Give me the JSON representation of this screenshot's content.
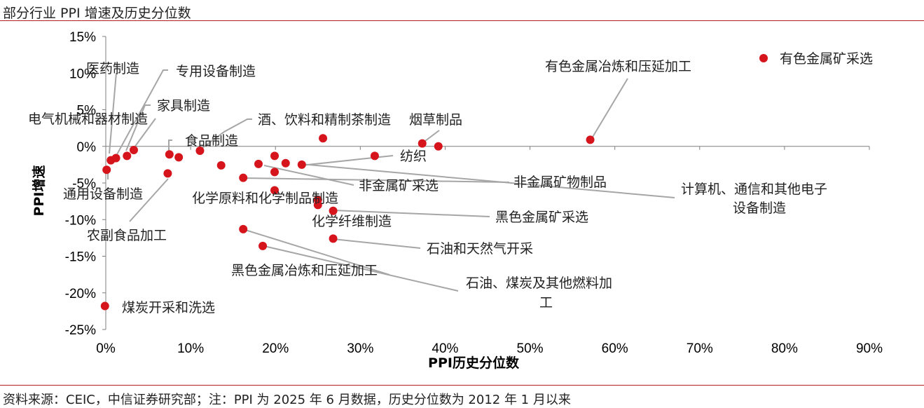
{
  "title": "部分行业 PPI 增速及历史分位数",
  "source": "资料来源：CEIC，中信证券研究部；注：PPI 为 2025 年 6 月数据，历史分位数为 2012 年 1 月以来",
  "chart_data": {
    "type": "scatter",
    "xlabel": "PPI历史分位数",
    "ylabel": "PPI增速",
    "xlim": [
      0,
      90
    ],
    "ylim": [
      -25,
      15
    ],
    "xticks": [
      "0%",
      "10%",
      "20%",
      "30%",
      "40%",
      "50%",
      "60%",
      "70%",
      "80%",
      "90%"
    ],
    "yticks": [
      "15%",
      "10%",
      "5%",
      "0%",
      "-5%",
      "-10%",
      "-15%",
      "-20%",
      "-25%"
    ],
    "series_name": "有色金属矿采选",
    "point_color": "#d6141c",
    "points": [
      {
        "x": 0.1,
        "y": -3.2
      },
      {
        "x": 0.6,
        "y": -1.9
      },
      {
        "x": 1.2,
        "y": -1.6
      },
      {
        "x": 2.5,
        "y": -1.3
      },
      {
        "x": 3.3,
        "y": -0.5
      },
      {
        "x": 7.3,
        "y": -3.7
      },
      {
        "x": 7.5,
        "y": -1.1
      },
      {
        "x": 8.6,
        "y": -1.5
      },
      {
        "x": 11.1,
        "y": -0.6
      },
      {
        "x": 13.6,
        "y": -2.6
      },
      {
        "x": 16.2,
        "y": -4.3
      },
      {
        "x": 16.2,
        "y": -11.3
      },
      {
        "x": 18.0,
        "y": -2.4
      },
      {
        "x": 18.5,
        "y": -13.6
      },
      {
        "x": 19.9,
        "y": -1.3
      },
      {
        "x": 19.9,
        "y": -3.5
      },
      {
        "x": 19.9,
        "y": -6.0
      },
      {
        "x": 21.2,
        "y": -2.3
      },
      {
        "x": 23.1,
        "y": -2.5
      },
      {
        "x": 25.0,
        "y": -7.3
      },
      {
        "x": 25.0,
        "y": -8.0
      },
      {
        "x": 25.6,
        "y": 1.1
      },
      {
        "x": 26.8,
        "y": -8.8
      },
      {
        "x": 26.8,
        "y": -12.6
      },
      {
        "x": 31.7,
        "y": -1.3
      },
      {
        "x": 37.3,
        "y": 0.4
      },
      {
        "x": 39.2,
        "y": 0.0
      },
      {
        "x": 57.1,
        "y": 0.9
      },
      {
        "x": -0.1,
        "y": -21.8
      }
    ],
    "annotations": [
      {
        "text": "医药制造",
        "x": 0.8,
        "y": -1.9
      },
      {
        "text": "专用设备制造",
        "x": 1.5,
        "y": -1.6
      },
      {
        "text": "家具制造",
        "x": 2.6,
        "y": -1.3
      },
      {
        "text": "电气机械和器材制造",
        "x": 3.3,
        "y": -0.5
      },
      {
        "text": "通用设备制造",
        "x": 0.3,
        "y": -3.2
      },
      {
        "text": "农副食品加工",
        "x": 7.3,
        "y": -3.7
      },
      {
        "text": "食品制造",
        "x": 7.5,
        "y": -1.1
      },
      {
        "text": "酒、饮料和精制茶制造",
        "x": 11.1,
        "y": -0.6
      },
      {
        "text": "烟草制品",
        "x": 37.3,
        "y": 0.4
      },
      {
        "text": "有色金属冶炼和压延加工",
        "x": 57.1,
        "y": 0.9
      },
      {
        "text": "纺织",
        "x": 31.7,
        "y": -1.3
      },
      {
        "text": "非金属矿采选",
        "x": 19.9,
        "y": -3.5
      },
      {
        "text": "非金属矿物制品",
        "x": 16.2,
        "y": -4.3
      },
      {
        "text": "计算机、通信和其他电子",
        "x": 23.1,
        "y": -2.5
      },
      {
        "text": "设备制造",
        "x": 23.1,
        "y": -2.5
      },
      {
        "text": "化学原料和化学制品制造",
        "x": 25.0,
        "y": -7.3
      },
      {
        "text": "化学纤维制造",
        "x": 25.0,
        "y": -8.0
      },
      {
        "text": "黑色金属矿采选",
        "x": 26.8,
        "y": -8.8
      },
      {
        "text": "石油和天然气开采",
        "x": 26.8,
        "y": -12.6
      },
      {
        "text": "黑色金属冶炼和压延加工",
        "x": 16.2,
        "y": -11.3
      },
      {
        "text": "石油、煤炭及其他燃料加",
        "x": 18.5,
        "y": -13.6
      },
      {
        "text": "工",
        "x": 18.5,
        "y": -13.6
      },
      {
        "text": "煤炭开采和洗选",
        "x": -0.1,
        "y": -21.8
      }
    ]
  }
}
